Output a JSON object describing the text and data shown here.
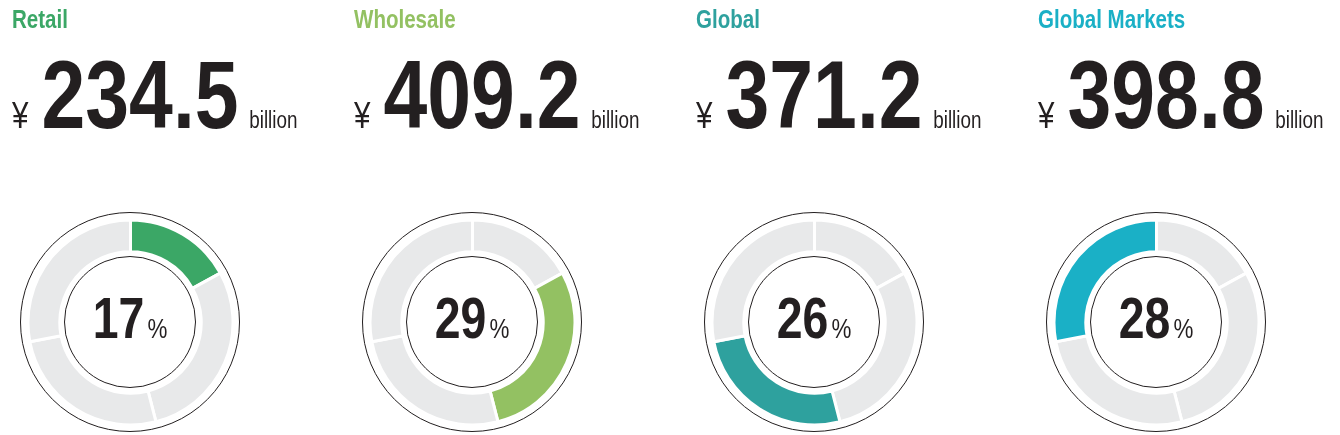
{
  "chart_data": [
    {
      "type": "donut",
      "title": "Retail",
      "annotations": [
        "¥",
        "234.5",
        "billion",
        "17%"
      ],
      "categories": [
        null,
        null,
        null,
        null
      ],
      "values": [
        17,
        29,
        26,
        28
      ],
      "colors": [
        "#3ba766",
        "#e8e9ea",
        "#e8e9ea",
        "#e8e9ea"
      ]
    },
    {
      "type": "donut",
      "title": "Wholesale",
      "annotations": [
        "¥",
        "409.2",
        "billion",
        "29%"
      ],
      "categories": [
        null,
        null,
        null,
        null
      ],
      "values": [
        17,
        29,
        26,
        28
      ],
      "colors": [
        "#e8e9ea",
        "#93c162",
        "#e8e9ea",
        "#e8e9ea"
      ]
    },
    {
      "type": "donut",
      "title": "Global",
      "annotations": [
        "¥",
        "371.2",
        "billion",
        "26%"
      ],
      "categories": [
        null,
        null,
        null,
        null
      ],
      "values": [
        17,
        29,
        26,
        28
      ],
      "colors": [
        "#e8e9ea",
        "#e8e9ea",
        "#2ea19e",
        "#e8e9ea"
      ]
    },
    {
      "type": "donut",
      "title": "Global Markets",
      "annotations": [
        "¥",
        "398.8",
        "billion",
        "28%"
      ],
      "categories": [
        null,
        null,
        null,
        null
      ],
      "values": [
        17,
        29,
        26,
        28
      ],
      "colors": [
        "#e8e9ea",
        "#e8e9ea",
        "#e8e9ea",
        "#1ab0c6"
      ]
    }
  ]
}
